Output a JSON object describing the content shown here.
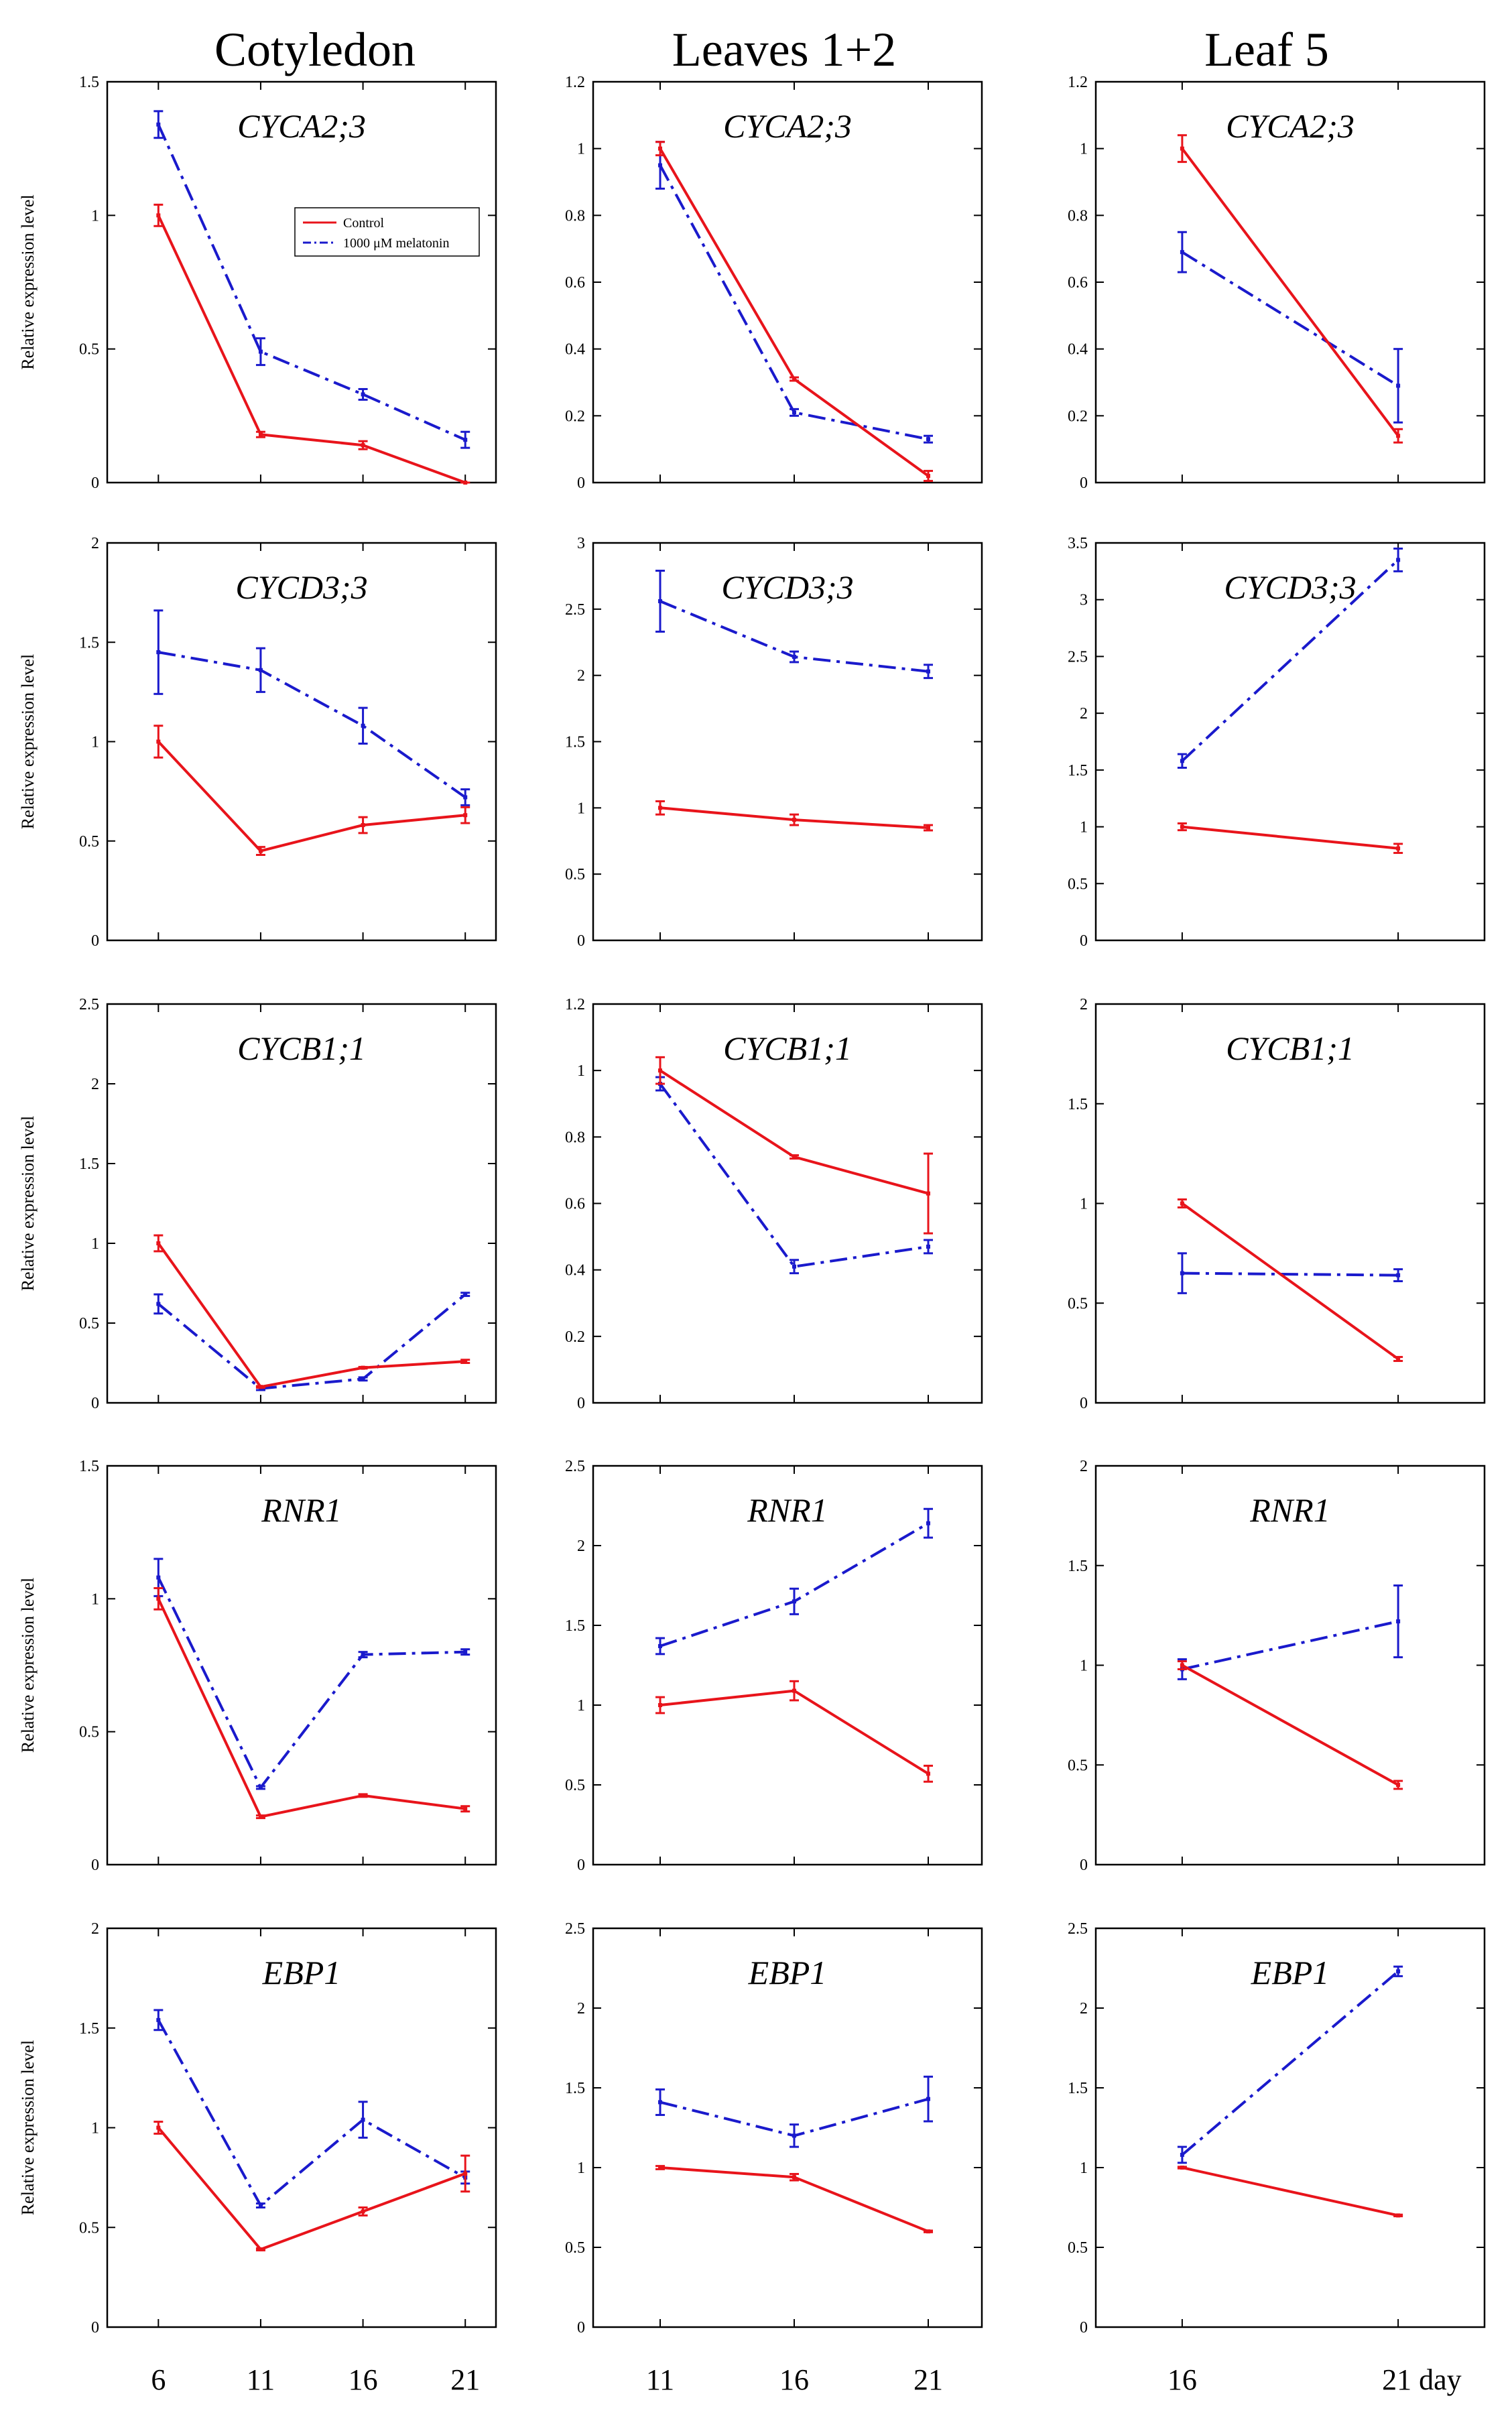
{
  "colors": {
    "control": "#e8141b",
    "melatonin": "#1a1acc"
  },
  "column_titles": [
    "Cotyledon",
    "Leaves 1+2",
    "Leaf 5"
  ],
  "y_axis_label": "Relative expression level",
  "x_ticks": [
    [
      "6",
      "11",
      "16",
      "21"
    ],
    [
      "11",
      "16",
      "21"
    ],
    [
      "16",
      "21 day"
    ]
  ],
  "legend": {
    "control": "Control",
    "melatonin": "1000 μM melatonin"
  },
  "chart_data": [
    {
      "type": "line",
      "panel": "Cotyledon-CYCA2;3",
      "gene": "CYCA2;3",
      "ylim": [
        0,
        1.5
      ],
      "yticks": [
        0,
        0.5,
        1,
        1.5
      ],
      "x": [
        6,
        11,
        16,
        21
      ],
      "series": [
        {
          "name": "Control",
          "values": [
            1.0,
            0.18,
            0.14,
            0.0
          ],
          "errors": [
            0.04,
            0.01,
            0.015,
            0.0
          ]
        },
        {
          "name": "1000 μM melatonin",
          "values": [
            1.34,
            0.49,
            0.33,
            0.16
          ],
          "errors": [
            0.05,
            0.05,
            0.02,
            0.03
          ]
        }
      ]
    },
    {
      "type": "line",
      "panel": "Leaves 1+2-CYCA2;3",
      "gene": "CYCA2;3",
      "ylim": [
        0,
        1.2
      ],
      "yticks": [
        0,
        0.2,
        0.4,
        0.6,
        0.8,
        1,
        1.2
      ],
      "x": [
        11,
        16,
        21
      ],
      "series": [
        {
          "name": "Control",
          "values": [
            1.0,
            0.31,
            0.02
          ],
          "errors": [
            0.02,
            0.005,
            0.015
          ]
        },
        {
          "name": "1000 μM melatonin",
          "values": [
            0.95,
            0.21,
            0.13
          ],
          "errors": [
            0.07,
            0.01,
            0.01
          ]
        }
      ]
    },
    {
      "type": "line",
      "panel": "Leaf 5-CYCA2;3",
      "gene": "CYCA2;3",
      "ylim": [
        0,
        1.2
      ],
      "yticks": [
        0,
        0.2,
        0.4,
        0.6,
        0.8,
        1,
        1.2
      ],
      "x": [
        16,
        21
      ],
      "series": [
        {
          "name": "Control",
          "values": [
            1.0,
            0.14
          ],
          "errors": [
            0.04,
            0.02
          ]
        },
        {
          "name": "1000 μM melatonin",
          "values": [
            0.69,
            0.29
          ],
          "errors": [
            0.06,
            0.11
          ]
        }
      ]
    },
    {
      "type": "line",
      "panel": "Cotyledon-CYCD3;3",
      "gene": "CYCD3;3",
      "ylim": [
        0,
        2
      ],
      "yticks": [
        0,
        0.5,
        1,
        1.5,
        2
      ],
      "x": [
        6,
        11,
        16,
        21
      ],
      "series": [
        {
          "name": "Control",
          "values": [
            1.0,
            0.45,
            0.58,
            0.63
          ],
          "errors": [
            0.08,
            0.02,
            0.04,
            0.04
          ]
        },
        {
          "name": "1000 μM melatonin",
          "values": [
            1.45,
            1.36,
            1.08,
            0.72
          ],
          "errors": [
            0.21,
            0.11,
            0.09,
            0.04
          ]
        }
      ]
    },
    {
      "type": "line",
      "panel": "Leaves 1+2-CYCD3;3",
      "gene": "CYCD3;3",
      "ylim": [
        0,
        3
      ],
      "yticks": [
        0,
        0.5,
        1,
        1.5,
        2,
        2.5,
        3
      ],
      "x": [
        11,
        16,
        21
      ],
      "series": [
        {
          "name": "Control",
          "values": [
            1.0,
            0.91,
            0.85
          ],
          "errors": [
            0.05,
            0.04,
            0.02
          ]
        },
        {
          "name": "1000 μM melatonin",
          "values": [
            2.56,
            2.14,
            2.03
          ],
          "errors": [
            0.23,
            0.04,
            0.05
          ]
        }
      ]
    },
    {
      "type": "line",
      "panel": "Leaf 5-CYCD3;3",
      "gene": "CYCD3;3",
      "ylim": [
        0,
        3.5
      ],
      "yticks": [
        0,
        0.5,
        1,
        1.5,
        2,
        2.5,
        3,
        3.5
      ],
      "x": [
        16,
        21
      ],
      "series": [
        {
          "name": "Control",
          "values": [
            1.0,
            0.81
          ],
          "errors": [
            0.03,
            0.04
          ]
        },
        {
          "name": "1000 μM melatonin",
          "values": [
            1.58,
            3.35
          ],
          "errors": [
            0.06,
            0.1
          ]
        }
      ]
    },
    {
      "type": "line",
      "panel": "Cotyledon-CYCB1;1",
      "gene": "CYCB1;1",
      "ylim": [
        0,
        2.5
      ],
      "yticks": [
        0,
        0.5,
        1,
        1.5,
        2,
        2.5
      ],
      "x": [
        6,
        11,
        16,
        21
      ],
      "series": [
        {
          "name": "Control",
          "values": [
            1.0,
            0.1,
            0.22,
            0.26
          ],
          "errors": [
            0.05,
            0.005,
            0.005,
            0.01
          ]
        },
        {
          "name": "1000 μM melatonin",
          "values": [
            0.62,
            0.09,
            0.15,
            0.68
          ],
          "errors": [
            0.06,
            0.01,
            0.01,
            0.01
          ]
        }
      ]
    },
    {
      "type": "line",
      "panel": "Leaves 1+2-CYCB1;1",
      "gene": "CYCB1;1",
      "ylim": [
        0,
        1.2
      ],
      "yticks": [
        0,
        0.2,
        0.4,
        0.6,
        0.8,
        1,
        1.2
      ],
      "x": [
        11,
        16,
        21
      ],
      "series": [
        {
          "name": "Control",
          "values": [
            1.0,
            0.74,
            0.63
          ],
          "errors": [
            0.04,
            0.005,
            0.12
          ]
        },
        {
          "name": "1000 μM melatonin",
          "values": [
            0.96,
            0.41,
            0.47
          ],
          "errors": [
            0.02,
            0.02,
            0.02
          ]
        }
      ]
    },
    {
      "type": "line",
      "panel": "Leaf 5-CYCB1;1",
      "gene": "CYCB1;1",
      "ylim": [
        0,
        2
      ],
      "yticks": [
        0,
        0.5,
        1,
        1.5,
        2
      ],
      "x": [
        16,
        21
      ],
      "series": [
        {
          "name": "Control",
          "values": [
            1.0,
            0.22
          ],
          "errors": [
            0.02,
            0.01
          ]
        },
        {
          "name": "1000 μM melatonin",
          "values": [
            0.65,
            0.64
          ],
          "errors": [
            0.1,
            0.03
          ]
        }
      ]
    },
    {
      "type": "line",
      "panel": "Cotyledon-RNR1",
      "gene": "RNR1",
      "ylim": [
        0,
        1.5
      ],
      "yticks": [
        0,
        0.5,
        1,
        1.5
      ],
      "x": [
        6,
        11,
        16,
        21
      ],
      "series": [
        {
          "name": "Control",
          "values": [
            1.0,
            0.18,
            0.26,
            0.21
          ],
          "errors": [
            0.04,
            0.005,
            0.005,
            0.01
          ]
        },
        {
          "name": "1000 μM melatonin",
          "values": [
            1.08,
            0.29,
            0.79,
            0.8
          ],
          "errors": [
            0.07,
            0.005,
            0.01,
            0.01
          ]
        }
      ]
    },
    {
      "type": "line",
      "panel": "Leaves 1+2-RNR1",
      "gene": "RNR1",
      "ylim": [
        0,
        2.5
      ],
      "yticks": [
        0,
        0.5,
        1,
        1.5,
        2,
        2.5
      ],
      "x": [
        11,
        16,
        21
      ],
      "series": [
        {
          "name": "Control",
          "values": [
            1.0,
            1.09,
            0.57
          ],
          "errors": [
            0.05,
            0.06,
            0.05
          ]
        },
        {
          "name": "1000 μM melatonin",
          "values": [
            1.37,
            1.65,
            2.14
          ],
          "errors": [
            0.05,
            0.08,
            0.09
          ]
        }
      ]
    },
    {
      "type": "line",
      "panel": "Leaf 5-RNR1",
      "gene": "RNR1",
      "ylim": [
        0,
        2
      ],
      "yticks": [
        0,
        0.5,
        1,
        1.5,
        2
      ],
      "x": [
        16,
        21
      ],
      "series": [
        {
          "name": "Control",
          "values": [
            1.0,
            0.4
          ],
          "errors": [
            0.02,
            0.02
          ]
        },
        {
          "name": "1000 μM melatonin",
          "values": [
            0.98,
            1.22
          ],
          "errors": [
            0.05,
            0.18
          ]
        }
      ]
    },
    {
      "type": "line",
      "panel": "Cotyledon-EBP1",
      "gene": "EBP1",
      "ylim": [
        0,
        2
      ],
      "yticks": [
        0,
        0.5,
        1,
        1.5,
        2
      ],
      "x": [
        6,
        11,
        16,
        21
      ],
      "series": [
        {
          "name": "Control",
          "values": [
            1.0,
            0.39,
            0.58,
            0.77
          ],
          "errors": [
            0.03,
            0.005,
            0.02,
            0.09
          ]
        },
        {
          "name": "1000 μM melatonin",
          "values": [
            1.54,
            0.61,
            1.04,
            0.75
          ],
          "errors": [
            0.05,
            0.01,
            0.09,
            0.03
          ]
        }
      ]
    },
    {
      "type": "line",
      "panel": "Leaves 1+2-EBP1",
      "gene": "EBP1",
      "ylim": [
        0,
        2.5
      ],
      "yticks": [
        0,
        0.5,
        1,
        1.5,
        2,
        2.5
      ],
      "x": [
        11,
        16,
        21
      ],
      "series": [
        {
          "name": "Control",
          "values": [
            1.0,
            0.94,
            0.6
          ],
          "errors": [
            0.01,
            0.02,
            0.005
          ]
        },
        {
          "name": "1000 μM melatonin",
          "values": [
            1.41,
            1.2,
            1.43
          ],
          "errors": [
            0.08,
            0.07,
            0.14
          ]
        }
      ]
    },
    {
      "type": "line",
      "panel": "Leaf 5-EBP1",
      "gene": "EBP1",
      "ylim": [
        0,
        2.5
      ],
      "yticks": [
        0,
        0.5,
        1,
        1.5,
        2,
        2.5
      ],
      "x": [
        16,
        21
      ],
      "series": [
        {
          "name": "Control",
          "values": [
            1.0,
            0.7
          ],
          "errors": [
            0.005,
            0.005
          ]
        },
        {
          "name": "1000 μM melatonin",
          "values": [
            1.08,
            2.23
          ],
          "errors": [
            0.05,
            0.03
          ]
        }
      ]
    }
  ]
}
